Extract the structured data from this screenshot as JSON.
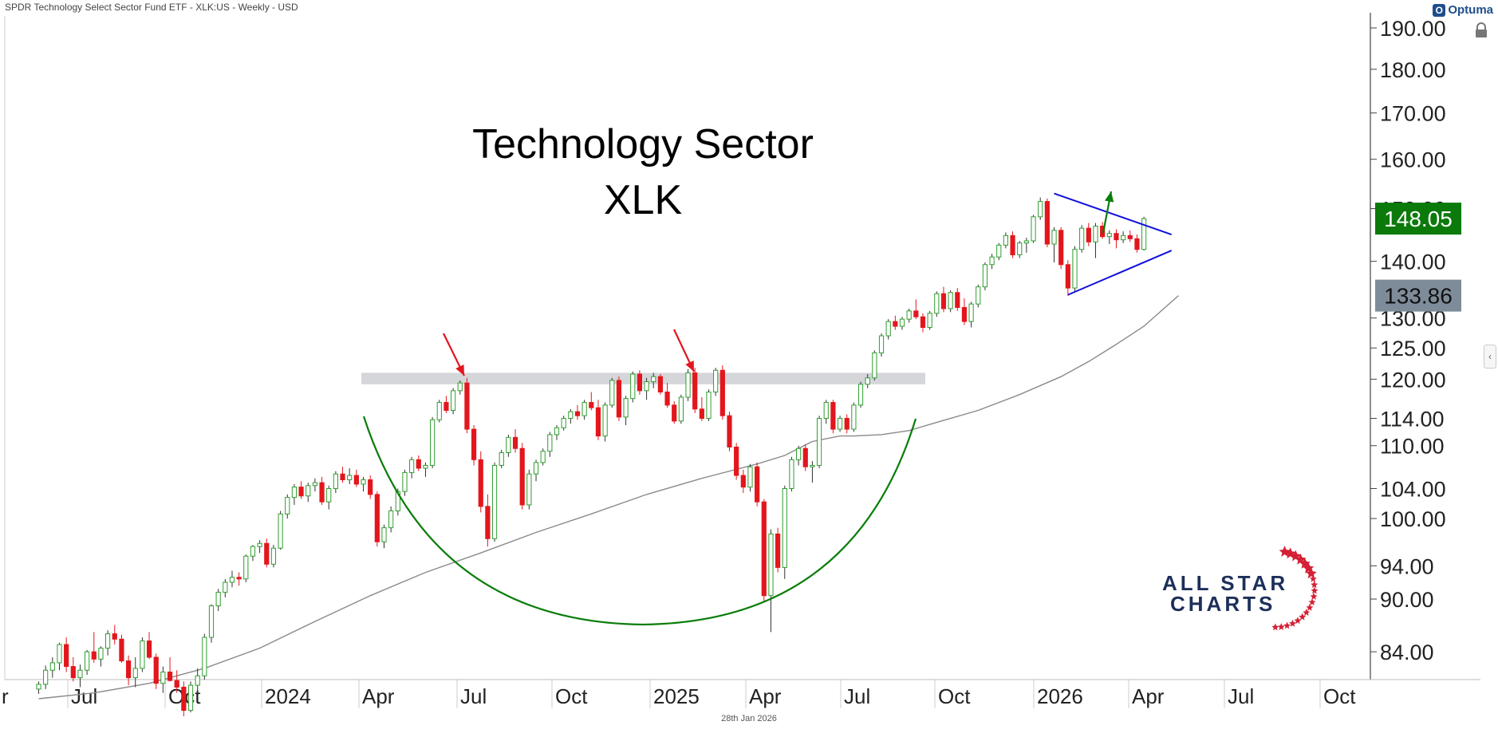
{
  "header": {
    "title": "SPDR Technology Select Sector Fund ETF - XLK:US - Weekly - USD",
    "logo": "Optuma"
  },
  "footer": {
    "date": "28th Jan 2026"
  },
  "chart_data": {
    "type": "candlestick",
    "title": "Technology Sector",
    "subtitle": "XLK",
    "y_scale": "log",
    "ylim": [
      81,
      193
    ],
    "y_ticks": [
      84,
      90,
      94,
      100,
      104,
      110,
      114,
      120,
      125,
      130,
      140,
      150,
      160,
      170,
      180,
      190
    ],
    "y_tick_labels": [
      "84.00",
      "90.00",
      "94.00",
      "100.00",
      "104.00",
      "110.00",
      "114.00",
      "120.00",
      "125.00",
      "130.00",
      "140.00",
      "150.00",
      "160.00",
      "170.00",
      "180.00",
      "190.00"
    ],
    "x_tick_labels": [
      "Jul",
      "Oct",
      "2024",
      "Apr",
      "Jul",
      "Oct",
      "2025",
      "Apr",
      "Jul",
      "Oct",
      "2026",
      "Apr",
      "Jul",
      "Oct"
    ],
    "last_price": "148.05",
    "ma_value": "133.86",
    "colors": {
      "up": "#2e9e2e",
      "down": "#e3161d",
      "ma": "#8a8a8a",
      "resistance": "#cfd2d6",
      "cup": "#0a7d0a",
      "triangle": "#1010dd",
      "arrow_red": "#e3161d",
      "arrow_green": "#0a7d0a",
      "last_bg": "#0b7a0b",
      "ma_bg": "#7e8c99"
    },
    "resistance_level": 120,
    "series": [
      {
        "name": "weekly",
        "values": [
          [
            80.0,
            80.8,
            79.5,
            80.5
          ],
          [
            80.5,
            82.5,
            80.0,
            82.0
          ],
          [
            82.0,
            83.4,
            81.2,
            82.8
          ],
          [
            82.8,
            85.0,
            82.0,
            84.8
          ],
          [
            84.8,
            85.6,
            81.8,
            82.4
          ],
          [
            82.4,
            83.4,
            80.8,
            81.2
          ],
          [
            81.2,
            82.6,
            80.2,
            82.0
          ],
          [
            82.0,
            84.2,
            81.5,
            84.0
          ],
          [
            84.0,
            86.2,
            82.8,
            83.2
          ],
          [
            83.2,
            84.6,
            82.4,
            84.4
          ],
          [
            84.4,
            86.4,
            83.6,
            86.0
          ],
          [
            86.0,
            87.0,
            84.8,
            85.4
          ],
          [
            85.4,
            85.9,
            82.8,
            83.0
          ],
          [
            83.0,
            83.6,
            80.4,
            81.2
          ],
          [
            81.2,
            83.4,
            80.2,
            82.2
          ],
          [
            82.2,
            85.6,
            81.8,
            85.2
          ],
          [
            85.2,
            86.2,
            83.2,
            83.4
          ],
          [
            83.4,
            83.8,
            80.0,
            80.6
          ],
          [
            80.6,
            82.4,
            79.6,
            81.8
          ],
          [
            81.8,
            83.4,
            80.8,
            80.9
          ],
          [
            80.9,
            82.0,
            79.6,
            80.2
          ],
          [
            80.2,
            80.8,
            77.2,
            77.8
          ],
          [
            77.8,
            80.8,
            77.6,
            80.4
          ],
          [
            80.4,
            82.2,
            79.6,
            81.4
          ],
          [
            81.4,
            86.0,
            81.0,
            85.6
          ],
          [
            85.6,
            89.4,
            85.0,
            89.2
          ],
          [
            89.2,
            91.2,
            88.6,
            90.8
          ],
          [
            90.8,
            92.4,
            90.2,
            92.0
          ],
          [
            92.0,
            93.4,
            91.4,
            92.6
          ],
          [
            92.6,
            93.2,
            91.6,
            92.4
          ],
          [
            92.4,
            95.4,
            92.0,
            95.2
          ],
          [
            95.2,
            96.6,
            94.6,
            96.4
          ],
          [
            96.4,
            97.2,
            95.6,
            96.8
          ],
          [
            96.8,
            97.4,
            93.8,
            94.2
          ],
          [
            94.2,
            96.6,
            93.8,
            96.2
          ],
          [
            96.2,
            101.0,
            96.0,
            100.6
          ],
          [
            100.6,
            103.2,
            100.0,
            102.8
          ],
          [
            102.8,
            104.6,
            101.8,
            104.2
          ],
          [
            104.2,
            105.0,
            102.6,
            103.0
          ],
          [
            103.0,
            104.8,
            102.2,
            104.4
          ],
          [
            104.4,
            105.4,
            103.6,
            104.8
          ],
          [
            104.8,
            105.6,
            101.8,
            102.2
          ],
          [
            102.2,
            104.4,
            101.2,
            104.0
          ],
          [
            104.0,
            106.4,
            103.4,
            106.0
          ],
          [
            106.0,
            107.0,
            104.8,
            105.2
          ],
          [
            105.2,
            106.8,
            104.6,
            105.8
          ],
          [
            105.8,
            106.6,
            104.2,
            104.6
          ],
          [
            104.6,
            105.6,
            103.6,
            105.2
          ],
          [
            105.2,
            105.8,
            102.6,
            103.2
          ],
          [
            103.2,
            103.6,
            96.4,
            97.0
          ],
          [
            97.0,
            99.2,
            96.2,
            98.8
          ],
          [
            98.8,
            101.6,
            98.2,
            101.0
          ],
          [
            101.0,
            104.0,
            100.4,
            103.6
          ],
          [
            103.6,
            106.6,
            103.0,
            106.2
          ],
          [
            106.2,
            108.4,
            105.4,
            108.0
          ],
          [
            108.0,
            108.6,
            106.4,
            106.8
          ],
          [
            106.8,
            107.6,
            105.6,
            107.2
          ],
          [
            107.2,
            114.2,
            106.8,
            113.8
          ],
          [
            113.8,
            116.8,
            113.4,
            116.4
          ],
          [
            116.4,
            117.4,
            114.8,
            115.2
          ],
          [
            115.2,
            118.6,
            114.6,
            118.2
          ],
          [
            118.2,
            119.8,
            117.6,
            119.4
          ],
          [
            119.4,
            120.2,
            111.8,
            112.4
          ],
          [
            112.4,
            113.0,
            107.2,
            108.0
          ],
          [
            108.0,
            109.2,
            100.8,
            101.6
          ],
          [
            101.6,
            103.2,
            96.4,
            97.4
          ],
          [
            97.4,
            107.6,
            97.0,
            107.2
          ],
          [
            107.2,
            109.4,
            106.8,
            109.0
          ],
          [
            109.0,
            111.6,
            108.4,
            111.2
          ],
          [
            111.2,
            112.4,
            109.0,
            109.6
          ],
          [
            109.6,
            110.4,
            101.2,
            101.8
          ],
          [
            101.8,
            106.6,
            101.2,
            106.0
          ],
          [
            106.0,
            108.0,
            105.0,
            107.6
          ],
          [
            107.6,
            109.6,
            107.2,
            109.2
          ],
          [
            109.2,
            112.0,
            108.4,
            111.6
          ],
          [
            111.6,
            113.0,
            110.8,
            112.6
          ],
          [
            112.6,
            114.4,
            112.2,
            114.0
          ],
          [
            114.0,
            115.4,
            113.2,
            115.0
          ],
          [
            115.0,
            116.0,
            113.8,
            114.4
          ],
          [
            114.4,
            116.8,
            113.8,
            116.4
          ],
          [
            116.4,
            118.0,
            115.2,
            115.6
          ],
          [
            115.6,
            116.8,
            110.8,
            111.4
          ],
          [
            111.4,
            116.4,
            110.6,
            116.0
          ],
          [
            116.0,
            120.2,
            115.6,
            119.8
          ],
          [
            119.8,
            120.4,
            113.6,
            114.2
          ],
          [
            114.2,
            117.4,
            113.0,
            117.0
          ],
          [
            117.0,
            121.2,
            116.4,
            120.8
          ],
          [
            120.8,
            121.4,
            117.6,
            118.2
          ],
          [
            118.2,
            120.2,
            116.8,
            119.6
          ],
          [
            119.6,
            121.0,
            118.6,
            120.4
          ],
          [
            120.4,
            120.8,
            117.6,
            118.0
          ],
          [
            118.0,
            119.4,
            115.6,
            116.0
          ],
          [
            116.0,
            116.6,
            113.2,
            113.6
          ],
          [
            113.6,
            117.6,
            113.2,
            117.2
          ],
          [
            117.2,
            121.6,
            116.6,
            121.0
          ],
          [
            121.0,
            121.8,
            114.8,
            115.4
          ],
          [
            115.4,
            117.2,
            113.6,
            114.0
          ],
          [
            114.0,
            118.4,
            113.6,
            118.0
          ],
          [
            118.0,
            121.8,
            117.4,
            121.4
          ],
          [
            121.4,
            122.2,
            113.8,
            114.4
          ],
          [
            114.4,
            115.0,
            109.2,
            109.8
          ],
          [
            109.8,
            110.4,
            105.2,
            105.8
          ],
          [
            105.8,
            106.6,
            103.4,
            104.2
          ],
          [
            104.2,
            107.4,
            103.6,
            107.0
          ],
          [
            107.0,
            107.6,
            101.6,
            102.2
          ],
          [
            102.2,
            102.6,
            89.6,
            90.4
          ],
          [
            90.4,
            98.6,
            86.2,
            98.0
          ],
          [
            98.0,
            98.8,
            93.2,
            93.8
          ],
          [
            93.8,
            104.4,
            92.4,
            104.0
          ],
          [
            104.0,
            108.4,
            103.6,
            108.0
          ],
          [
            108.0,
            110.0,
            107.2,
            109.6
          ],
          [
            109.6,
            110.2,
            106.4,
            107.0
          ],
          [
            107.0,
            107.8,
            104.8,
            107.2
          ],
          [
            107.2,
            114.4,
            106.8,
            114.0
          ],
          [
            114.0,
            116.8,
            113.2,
            116.4
          ],
          [
            116.4,
            116.8,
            111.8,
            112.4
          ],
          [
            112.4,
            114.4,
            112.0,
            114.0
          ],
          [
            114.0,
            114.6,
            111.8,
            112.4
          ],
          [
            112.4,
            116.4,
            112.0,
            116.0
          ],
          [
            116.0,
            119.6,
            115.6,
            119.2
          ],
          [
            119.2,
            120.8,
            118.6,
            120.2
          ],
          [
            120.2,
            124.6,
            119.8,
            124.2
          ],
          [
            124.2,
            127.4,
            123.6,
            127.0
          ],
          [
            127.0,
            129.8,
            126.4,
            129.4
          ],
          [
            129.4,
            130.4,
            128.0,
            128.6
          ],
          [
            128.6,
            130.2,
            128.0,
            129.8
          ],
          [
            129.8,
            131.6,
            129.2,
            131.2
          ],
          [
            131.2,
            133.2,
            129.8,
            130.2
          ],
          [
            130.2,
            130.8,
            127.6,
            128.4
          ],
          [
            128.4,
            131.2,
            128.0,
            130.8
          ],
          [
            130.8,
            134.6,
            130.2,
            134.2
          ],
          [
            134.2,
            135.4,
            131.0,
            131.6
          ],
          [
            131.6,
            134.8,
            131.0,
            134.4
          ],
          [
            134.4,
            135.2,
            131.2,
            131.8
          ],
          [
            131.8,
            133.4,
            128.8,
            129.4
          ],
          [
            129.4,
            132.8,
            128.4,
            132.4
          ],
          [
            132.4,
            135.8,
            131.8,
            135.4
          ],
          [
            135.4,
            139.8,
            134.8,
            139.4
          ],
          [
            139.4,
            141.4,
            138.6,
            140.8
          ],
          [
            140.8,
            143.4,
            140.2,
            143.0
          ],
          [
            143.0,
            145.4,
            142.4,
            144.8
          ],
          [
            144.8,
            145.6,
            140.6,
            141.2
          ],
          [
            141.2,
            143.8,
            140.6,
            143.4
          ],
          [
            143.4,
            144.4,
            141.6,
            143.8
          ],
          [
            143.8,
            148.8,
            143.4,
            148.4
          ],
          [
            148.4,
            152.2,
            147.8,
            151.4
          ],
          [
            151.4,
            152.0,
            142.6,
            143.2
          ],
          [
            143.2,
            146.4,
            139.8,
            145.8
          ],
          [
            145.8,
            146.4,
            138.6,
            139.4
          ],
          [
            139.4,
            140.2,
            133.8,
            135.2
          ],
          [
            135.2,
            142.8,
            134.6,
            142.2
          ],
          [
            142.2,
            146.8,
            141.6,
            146.2
          ],
          [
            146.2,
            147.2,
            142.8,
            143.6
          ],
          [
            143.6,
            147.2,
            140.6,
            146.6
          ],
          [
            146.6,
            147.4,
            144.2,
            144.6
          ],
          [
            144.6,
            145.8,
            143.2,
            145.2
          ],
          [
            145.2,
            146.0,
            142.4,
            144.0
          ],
          [
            144.0,
            145.6,
            143.4,
            144.8
          ],
          [
            144.8,
            145.8,
            143.6,
            144.2
          ],
          [
            144.2,
            145.0,
            141.6,
            142.2
          ],
          [
            142.2,
            148.4,
            142.0,
            148.05
          ]
        ]
      },
      {
        "name": "ma",
        "values": [
          [
            0,
            79
          ],
          [
            8,
            79.6
          ],
          [
            16,
            80.6
          ],
          [
            24,
            82.2
          ],
          [
            32,
            84.4
          ],
          [
            40,
            87.4
          ],
          [
            48,
            90.4
          ],
          [
            56,
            93.2
          ],
          [
            64,
            95.6
          ],
          [
            72,
            98.2
          ],
          [
            80,
            100.6
          ],
          [
            88,
            103.2
          ],
          [
            96,
            105.4
          ],
          [
            104,
            107.4
          ],
          [
            108,
            108.6
          ],
          [
            110,
            109.6
          ],
          [
            112,
            110.6
          ],
          [
            116,
            111.4
          ],
          [
            118,
            111.4
          ],
          [
            122,
            111.6
          ],
          [
            126,
            112.2
          ],
          [
            130,
            113.4
          ],
          [
            136,
            115.2
          ],
          [
            142,
            117.6
          ],
          [
            148,
            120.4
          ],
          [
            152,
            122.8
          ],
          [
            156,
            125.6
          ],
          [
            160,
            128.6
          ],
          [
            165,
            133.86
          ]
        ]
      }
    ],
    "annotations": {
      "resistance_zone": {
        "low": 119.2,
        "high": 121.0
      },
      "cup_base_y": 90.8,
      "triangle_upper": [
        [
          147,
          153
        ],
        [
          164,
          145
        ]
      ],
      "triangle_lower": [
        [
          149,
          134
        ],
        [
          164,
          142
        ]
      ]
    },
    "brand": {
      "line1": "ALL STAR",
      "line2": "CHARTS"
    }
  }
}
